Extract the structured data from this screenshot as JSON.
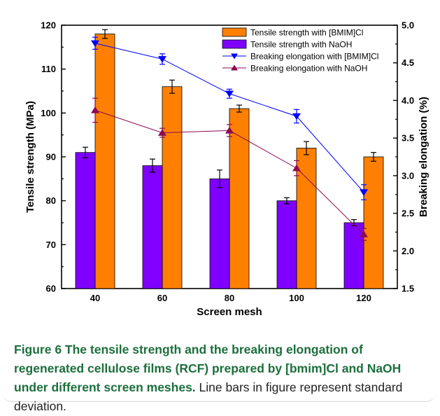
{
  "chart_data": {
    "type": "bar",
    "categories": [
      "40",
      "60",
      "80",
      "100",
      "120"
    ],
    "xlabel": "Screen mesh",
    "ylabel_left": "Tensile strength (MPa)",
    "ylabel_right": "Breaking elongation (%)",
    "ylim_left": [
      60,
      120
    ],
    "yticks_left": [
      "60",
      "70",
      "80",
      "90",
      "100",
      "110",
      "120"
    ],
    "ylim_right": [
      1.5,
      5.0
    ],
    "yticks_right": [
      "1.5",
      "2.0",
      "2.5",
      "3.0",
      "3.5",
      "4.0",
      "4.5",
      "5.0"
    ],
    "grid": false,
    "legend_position": "top-right",
    "series": [
      {
        "name": "Tensile strength with [BMIM]Cl",
        "kind": "bar",
        "axis": "left",
        "color": "#ff8000",
        "values": [
          118,
          106,
          101,
          92,
          90
        ],
        "errors": [
          1.0,
          1.5,
          0.8,
          1.5,
          1.0
        ]
      },
      {
        "name": "Tensile strength with NaOH",
        "kind": "bar",
        "axis": "left",
        "color": "#7f00ff",
        "values": [
          91,
          88,
          85,
          80,
          75
        ],
        "errors": [
          1.2,
          1.5,
          2.0,
          0.7,
          0.7
        ]
      },
      {
        "name": "Breaking elongation with [BMIM]Cl",
        "kind": "line",
        "axis": "right",
        "color": "#0000ff",
        "marker": "triangle-down",
        "values": [
          4.76,
          4.55,
          4.09,
          3.79,
          2.78
        ],
        "errors": [
          0.08,
          0.07,
          0.06,
          0.09,
          0.1
        ]
      },
      {
        "name": "Breaking elongation with NaOH",
        "kind": "line",
        "axis": "right",
        "color": "#8b0a50",
        "marker": "triangle-up",
        "values": [
          3.87,
          3.57,
          3.6,
          3.1,
          2.22
        ],
        "errors": [
          0.16,
          0.06,
          0.08,
          0.1,
          0.08
        ]
      }
    ]
  },
  "caption": {
    "title": "Figure 6 The tensile strength and the breaking elongation of regenerated cellulose films (RCF) prepared by [bmim]Cl and NaOH under different screen meshes.",
    "description": "Line bars in figure represent standard deviation."
  }
}
